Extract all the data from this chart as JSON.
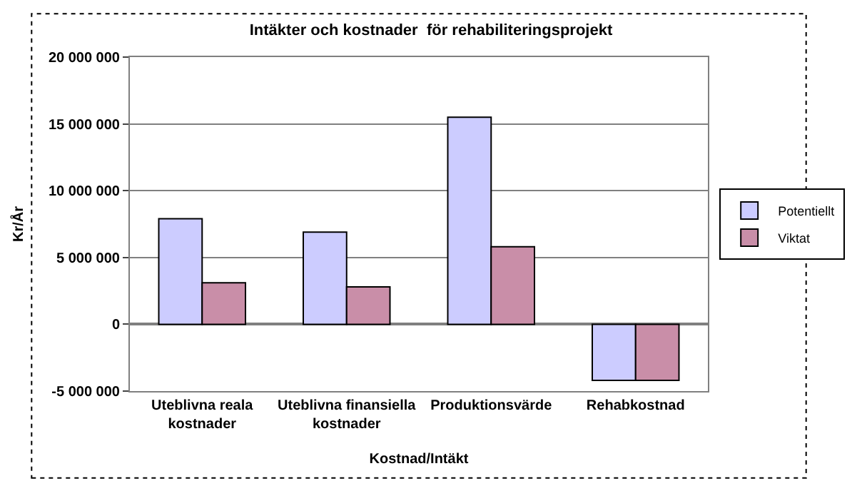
{
  "chart_data": {
    "type": "bar",
    "title": "Intäkter och kostnader  för rehabiliteringsprojekt",
    "xlabel": "Kostnad/Intäkt",
    "ylabel": "Kr/År",
    "categories": [
      "Uteblivna reala kostnader",
      "Uteblivna finansiella kostnader",
      "Produktionsvärde",
      "Rehabkostnad"
    ],
    "series": [
      {
        "name": "Potentiellt",
        "color": "#ccccff",
        "values": [
          7900000,
          6900000,
          15500000,
          -4200000
        ]
      },
      {
        "name": "Viktat",
        "color": "#c98ea8",
        "values": [
          3100000,
          2800000,
          5800000,
          -4200000
        ]
      }
    ],
    "ylim": [
      -5000000,
      20000000
    ],
    "yticks": [
      {
        "value": -5000000,
        "label": "-5 000 000"
      },
      0,
      {
        "value": 5000000,
        "label": "5 000 000"
      },
      {
        "value": 10000000,
        "label": "10 000 000"
      },
      {
        "value": 15000000,
        "label": "15 000 000"
      },
      {
        "value": 20000000,
        "label": "20 000 000"
      }
    ],
    "grid": "y",
    "legend": "right"
  }
}
